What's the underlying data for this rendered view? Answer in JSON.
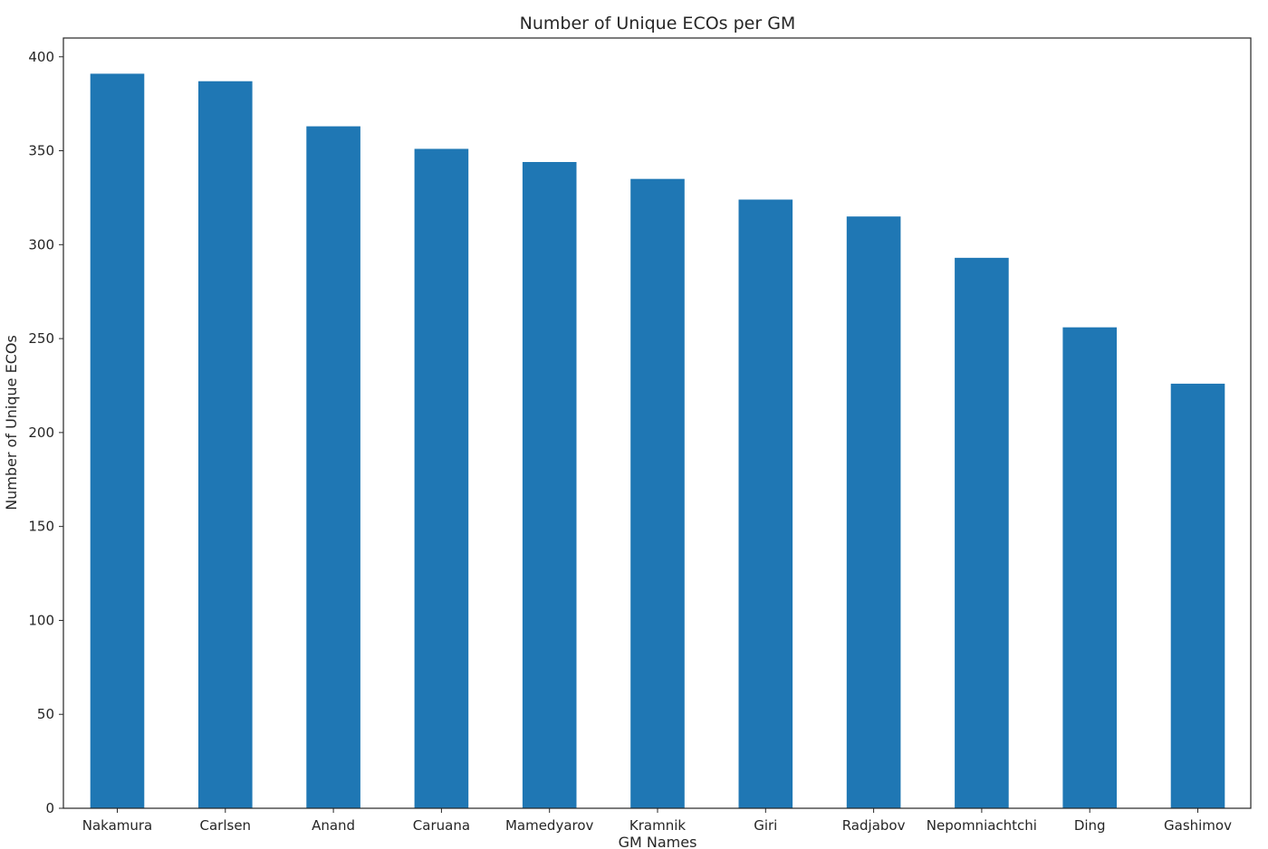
{
  "chart_data": {
    "type": "bar",
    "title": "Number of Unique ECOs per GM",
    "xlabel": "GM Names",
    "ylabel": "Number of Unique ECOs",
    "categories": [
      "Nakamura",
      "Carlsen",
      "Anand",
      "Caruana",
      "Mamedyarov",
      "Kramnik",
      "Giri",
      "Radjabov",
      "Nepomniachtchi",
      "Ding",
      "Gashimov"
    ],
    "values": [
      391,
      387,
      363,
      351,
      344,
      335,
      324,
      315,
      293,
      256,
      226
    ],
    "ylim": [
      0,
      410
    ],
    "yticks": [
      0,
      50,
      100,
      150,
      200,
      250,
      300,
      350,
      400
    ],
    "bar_color": "#1f77b4",
    "grid": false,
    "legend": "none"
  }
}
